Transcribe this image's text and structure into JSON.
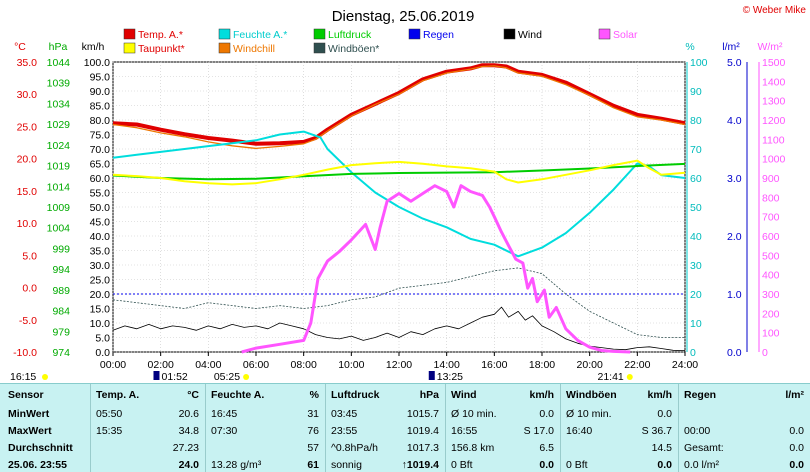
{
  "title": "Dienstag, 25.06.2019",
  "copyright": "© Weber Mike",
  "legend": [
    {
      "label": "Temp. A.*",
      "color": "#e00000"
    },
    {
      "label": "Feuchte A.*",
      "color": "#00dddd"
    },
    {
      "label": "Luftdruck",
      "color": "#00cc00"
    },
    {
      "label": "Regen",
      "color": "#0000ee"
    },
    {
      "label": "Wind",
      "color": "#000000"
    },
    {
      "label": "Solar",
      "color": "#ff55ff"
    },
    {
      "label": "Taupunkt*",
      "color": "#ffff00"
    },
    {
      "label": "Windchill",
      "color": "#ee7700"
    },
    {
      "label": "Windböen*",
      "color": "#2f4f4f"
    }
  ],
  "axis_units": {
    "temp": "°C",
    "pressure": "hPa",
    "wind": "km/h",
    "humidity": "%",
    "rain": "l/m²",
    "solar": "W/m²"
  },
  "ticks": {
    "temp": [
      "35.0",
      "30.0",
      "25.0",
      "20.0",
      "15.0",
      "10.0",
      "5.0",
      "0.0",
      "-5.0",
      "-10.0"
    ],
    "pressure": [
      "1044",
      "1039",
      "1034",
      "1029",
      "1024",
      "1019",
      "1014",
      "1009",
      "1004",
      "999",
      "994",
      "989",
      "984",
      "979",
      "974"
    ],
    "wind": [
      "100.0",
      "95.0",
      "90.0",
      "85.0",
      "80.0",
      "75.0",
      "70.0",
      "65.0",
      "60.0",
      "55.0",
      "50.0",
      "45.0",
      "40.0",
      "35.0",
      "30.0",
      "25.0",
      "20.0",
      "15.0",
      "10.0",
      "5.0",
      "0.0"
    ],
    "humidity": [
      "100",
      "90",
      "80",
      "70",
      "60",
      "50",
      "40",
      "30",
      "20",
      "10",
      "0"
    ],
    "rain": [
      "5.0",
      "4.0",
      "3.0",
      "2.0",
      "1.0",
      "0.0"
    ],
    "solar": [
      "1500",
      "1400",
      "1300",
      "1200",
      "1100",
      "1000",
      "900",
      "800",
      "700",
      "600",
      "500",
      "400",
      "300",
      "200",
      "100",
      "0"
    ],
    "time": [
      "00:00",
      "02:00",
      "04:00",
      "06:00",
      "08:00",
      "10:00",
      "12:00",
      "14:00",
      "16:00",
      "18:00",
      "20:00",
      "22:00",
      "24:00"
    ]
  },
  "markers": {
    "sunrise": "05:25",
    "sunset": "21:41",
    "temp_min_time": "01:52",
    "temp_max_time": "13:25",
    "left_time": "16:15"
  },
  "chart_data": {
    "type": "line",
    "x_unit": "hour",
    "xlim": [
      0,
      24
    ],
    "series": [
      {
        "name": "Temp. A.*",
        "axis": "temp",
        "color": "#e00000",
        "width": 4,
        "points": [
          [
            0,
            25.5
          ],
          [
            1,
            25.3
          ],
          [
            2,
            24.5
          ],
          [
            3,
            23.8
          ],
          [
            4,
            23.2
          ],
          [
            5,
            22.8
          ],
          [
            6,
            22.3
          ],
          [
            7,
            22.4
          ],
          [
            8,
            22.6
          ],
          [
            8.5,
            23.2
          ],
          [
            9,
            24.5
          ],
          [
            10,
            26.8
          ],
          [
            11,
            28.5
          ],
          [
            12,
            30.2
          ],
          [
            13,
            32.3
          ],
          [
            14,
            33.5
          ],
          [
            15,
            34.0
          ],
          [
            15.5,
            34.5
          ],
          [
            16,
            34.5
          ],
          [
            16.5,
            34.3
          ],
          [
            17,
            33.5
          ],
          [
            18,
            33.0
          ],
          [
            19,
            31.8
          ],
          [
            20,
            30.0
          ],
          [
            21,
            28.2
          ],
          [
            22,
            26.8
          ],
          [
            23,
            26.2
          ],
          [
            24,
            25.5
          ]
        ]
      },
      {
        "name": "Windchill",
        "axis": "temp",
        "color": "#ee7700",
        "width": 1.3,
        "points": [
          [
            0,
            25.3
          ],
          [
            1,
            24.8
          ],
          [
            2,
            24.0
          ],
          [
            3,
            23.4
          ],
          [
            4,
            22.6
          ],
          [
            5,
            22.0
          ],
          [
            6,
            21.6
          ],
          [
            7,
            21.9
          ],
          [
            8,
            22.3
          ],
          [
            8.5,
            23.0
          ],
          [
            9,
            24.3
          ],
          [
            10,
            26.6
          ],
          [
            11,
            28.4
          ],
          [
            12,
            30.0
          ],
          [
            13,
            32.1
          ],
          [
            14,
            33.3
          ],
          [
            15,
            33.9
          ],
          [
            15.5,
            34.3
          ],
          [
            16,
            34.4
          ],
          [
            16.5,
            34.1
          ],
          [
            17,
            33.3
          ],
          [
            18,
            32.8
          ],
          [
            19,
            31.5
          ],
          [
            20,
            29.8
          ],
          [
            21,
            27.9
          ],
          [
            22,
            26.5
          ],
          [
            23,
            26.0
          ],
          [
            24,
            25.3
          ]
        ]
      },
      {
        "name": "Feuchte A.*",
        "axis": "humidity",
        "color": "#00dddd",
        "width": 2,
        "points": [
          [
            0,
            67
          ],
          [
            1,
            68
          ],
          [
            2,
            69
          ],
          [
            3,
            70
          ],
          [
            4,
            71
          ],
          [
            5,
            72
          ],
          [
            6,
            73
          ],
          [
            7,
            75
          ],
          [
            8,
            76
          ],
          [
            8.7,
            74
          ],
          [
            9,
            70
          ],
          [
            10,
            62
          ],
          [
            11,
            55
          ],
          [
            12,
            50
          ],
          [
            13,
            46
          ],
          [
            14,
            43
          ],
          [
            15,
            39
          ],
          [
            16,
            37
          ],
          [
            17,
            33
          ],
          [
            18,
            36
          ],
          [
            19,
            41
          ],
          [
            20,
            48
          ],
          [
            21,
            56
          ],
          [
            22,
            65
          ],
          [
            22.5,
            64
          ],
          [
            23,
            61
          ],
          [
            24,
            60
          ]
        ]
      },
      {
        "name": "Luftdruck",
        "axis": "pressure",
        "color": "#00cc00",
        "width": 2,
        "points": [
          [
            0,
            1016.6
          ],
          [
            2,
            1016.0
          ],
          [
            4,
            1015.7
          ],
          [
            6,
            1015.8
          ],
          [
            8,
            1016.4
          ],
          [
            10,
            1017.0
          ],
          [
            12,
            1017.2
          ],
          [
            14,
            1017.3
          ],
          [
            16,
            1017.4
          ],
          [
            18,
            1017.8
          ],
          [
            20,
            1018.3
          ],
          [
            22,
            1018.9
          ],
          [
            24,
            1019.4
          ]
        ]
      },
      {
        "name": "Taupunkt*",
        "axis": "temp",
        "color": "#ffff00",
        "width": 2,
        "points": [
          [
            0,
            17.5
          ],
          [
            1,
            17.3
          ],
          [
            2,
            17.0
          ],
          [
            3,
            16.5
          ],
          [
            4,
            16.2
          ],
          [
            5,
            16.0
          ],
          [
            6,
            16.2
          ],
          [
            7,
            16.8
          ],
          [
            8,
            17.5
          ],
          [
            9,
            18.3
          ],
          [
            10,
            19.0
          ],
          [
            11,
            19.3
          ],
          [
            12,
            19.5
          ],
          [
            13,
            19.2
          ],
          [
            14,
            18.8
          ],
          [
            15,
            18.5
          ],
          [
            16,
            18.0
          ],
          [
            16.5,
            16.8
          ],
          [
            17,
            16.3
          ],
          [
            18,
            16.8
          ],
          [
            19,
            17.5
          ],
          [
            20,
            18.2
          ],
          [
            21,
            19.0
          ],
          [
            22,
            19.7
          ],
          [
            22.5,
            18.5
          ],
          [
            23,
            17.5
          ],
          [
            24,
            17.8
          ]
        ]
      },
      {
        "name": "Windböen*",
        "axis": "wind",
        "color": "#2f4f4f",
        "width": 0.8,
        "dash": "2,1.5",
        "points": [
          [
            0,
            18
          ],
          [
            1,
            17
          ],
          [
            2,
            16
          ],
          [
            3,
            15
          ],
          [
            4,
            17
          ],
          [
            5,
            16
          ],
          [
            6,
            15
          ],
          [
            7,
            16
          ],
          [
            8,
            15
          ],
          [
            9,
            16
          ],
          [
            10,
            18
          ],
          [
            11,
            19
          ],
          [
            12,
            22
          ],
          [
            13,
            23
          ],
          [
            14,
            24
          ],
          [
            15,
            26
          ],
          [
            16,
            28
          ],
          [
            17,
            29
          ],
          [
            18,
            27
          ],
          [
            19,
            20
          ],
          [
            20,
            14
          ],
          [
            21,
            10
          ],
          [
            22,
            6
          ],
          [
            23,
            5
          ],
          [
            24,
            5
          ]
        ]
      },
      {
        "name": "Wind",
        "axis": "wind",
        "color": "#000000",
        "width": 0.8,
        "points": [
          [
            0,
            7.5
          ],
          [
            0.5,
            9
          ],
          [
            1,
            8
          ],
          [
            1.5,
            9.5
          ],
          [
            2,
            8
          ],
          [
            2.5,
            9
          ],
          [
            3,
            8.5
          ],
          [
            3.5,
            7.5
          ],
          [
            4,
            9
          ],
          [
            4.5,
            8
          ],
          [
            5,
            9.5
          ],
          [
            5.5,
            8.5
          ],
          [
            6,
            9
          ],
          [
            6.5,
            8
          ],
          [
            7,
            10
          ],
          [
            7.5,
            9
          ],
          [
            8,
            8
          ],
          [
            8.5,
            6
          ],
          [
            9,
            5
          ],
          [
            9.5,
            4.5
          ],
          [
            10,
            5.5
          ],
          [
            10.5,
            4
          ],
          [
            11,
            5
          ],
          [
            11.5,
            6.5
          ],
          [
            12,
            5
          ],
          [
            12.5,
            7
          ],
          [
            13,
            6
          ],
          [
            13.5,
            8
          ],
          [
            14,
            9
          ],
          [
            14.5,
            8
          ],
          [
            15,
            10
          ],
          [
            15.5,
            12
          ],
          [
            16,
            13
          ],
          [
            16.3,
            15.5
          ],
          [
            16.6,
            12
          ],
          [
            17,
            14
          ],
          [
            17.3,
            11
          ],
          [
            17.6,
            12.5
          ],
          [
            18,
            9
          ],
          [
            18.5,
            7
          ],
          [
            19,
            4.5
          ],
          [
            19.5,
            3
          ],
          [
            20,
            2
          ],
          [
            20.5,
            1.5
          ],
          [
            21,
            1
          ],
          [
            21.5,
            0.8
          ],
          [
            22,
            1.5
          ],
          [
            22.5,
            1.8
          ],
          [
            23,
            1.2
          ],
          [
            23.5,
            0.6
          ],
          [
            24,
            0.5
          ]
        ]
      },
      {
        "name": "Solar",
        "axis": "solar",
        "color": "#ff55ff",
        "width": 3,
        "points": [
          [
            5.4,
            0
          ],
          [
            6,
            20
          ],
          [
            7,
            40
          ],
          [
            8,
            60
          ],
          [
            8.3,
            150
          ],
          [
            8.6,
            380
          ],
          [
            9,
            470
          ],
          [
            9.5,
            520
          ],
          [
            10,
            580
          ],
          [
            10.3,
            620
          ],
          [
            10.6,
            660
          ],
          [
            11,
            530
          ],
          [
            11.2,
            640
          ],
          [
            11.5,
            780
          ],
          [
            12,
            820
          ],
          [
            12.5,
            780
          ],
          [
            13,
            820
          ],
          [
            13.5,
            860
          ],
          [
            14,
            830
          ],
          [
            14.3,
            750
          ],
          [
            14.6,
            860
          ],
          [
            15,
            830
          ],
          [
            15.5,
            810
          ],
          [
            15.8,
            750
          ],
          [
            16,
            700
          ],
          [
            16.3,
            620
          ],
          [
            16.6,
            550
          ],
          [
            16.9,
            480
          ],
          [
            17.2,
            460
          ],
          [
            17.4,
            330
          ],
          [
            17.6,
            380
          ],
          [
            17.8,
            260
          ],
          [
            18.1,
            320
          ],
          [
            18.3,
            180
          ],
          [
            18.6,
            230
          ],
          [
            19,
            120
          ],
          [
            19.5,
            60
          ],
          [
            20,
            25
          ],
          [
            20.5,
            8
          ],
          [
            21,
            3
          ],
          [
            21.7,
            0
          ]
        ]
      }
    ],
    "rain": [
      0
    ],
    "rain_dotted_level": 1.0
  },
  "table": {
    "headers": [
      "Sensor",
      "Temp. A.",
      "°C",
      "Feuchte A.",
      "%",
      "Luftdruck",
      "hPa",
      "Wind",
      "km/h",
      "Windböen",
      "km/h",
      "Regen",
      "l/m²"
    ],
    "rows": [
      {
        "label": "MinWert",
        "cells": [
          "05:50",
          "20.6",
          "16:45",
          "31",
          "03:45",
          "1015.7",
          "Ø 10 min.",
          "0.0",
          "Ø 10 min.",
          "0.0",
          "",
          ""
        ]
      },
      {
        "label": "MaxWert",
        "cells": [
          "15:35",
          "34.8",
          "07:30",
          "76",
          "23:55",
          "1019.4",
          "16:55",
          "S 17.0",
          "16:40",
          "S 36.7",
          "00:00",
          "0.0"
        ]
      },
      {
        "label": "Durchschnitt",
        "cells": [
          "",
          "27.23",
          "",
          "57",
          "^0.8hPa/h",
          "1017.3",
          "156.8 km",
          "6.5",
          "",
          "14.5",
          "Gesamt:",
          "0.0"
        ]
      },
      {
        "label": "25.06. 23:55",
        "cells": [
          "",
          "24.0",
          "13.28 g/m³",
          "61",
          "sonnig",
          "↑1019.4",
          "0 Bft",
          "0.0",
          "0 Bft",
          "0.0",
          "0.0 l/m²",
          "0.0"
        ]
      }
    ]
  }
}
